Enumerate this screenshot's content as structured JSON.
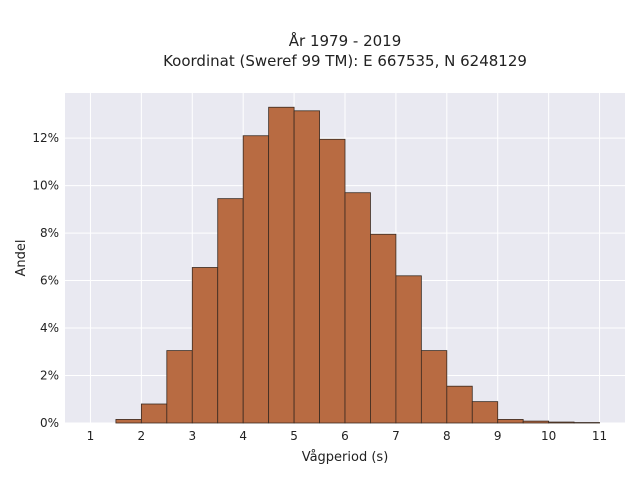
{
  "chart_data": {
    "type": "bar",
    "title": "År 1979 - 2019",
    "subtitle": "Koordinat (Sweref 99 TM): E 667535, N 6248129",
    "xlabel": "Vågperiod (s)",
    "ylabel": "Andel",
    "xlim": [
      0.5,
      11.5
    ],
    "ylim": [
      0,
      13.9
    ],
    "x_ticks": [
      1,
      2,
      3,
      4,
      5,
      6,
      7,
      8,
      9,
      10,
      11
    ],
    "y_ticks": [
      0,
      2,
      4,
      6,
      8,
      10,
      12
    ],
    "y_tick_suffix": "%",
    "bin_width": 0.5,
    "bin_starts": [
      1.5,
      2.0,
      2.5,
      3.0,
      3.5,
      4.0,
      4.5,
      5.0,
      5.5,
      6.0,
      6.5,
      7.0,
      7.5,
      8.0,
      8.5,
      9.0,
      9.5,
      10.0,
      10.5
    ],
    "values": [
      0.15,
      0.8,
      3.05,
      6.55,
      9.45,
      12.1,
      13.3,
      13.15,
      11.95,
      9.7,
      7.95,
      6.2,
      3.05,
      1.55,
      0.9,
      0.15,
      0.08,
      0.04,
      0.02
    ],
    "bar_color": "#b86b42",
    "edge_color": "#3a2a20",
    "background": "#e9e9f1",
    "grid": true
  }
}
